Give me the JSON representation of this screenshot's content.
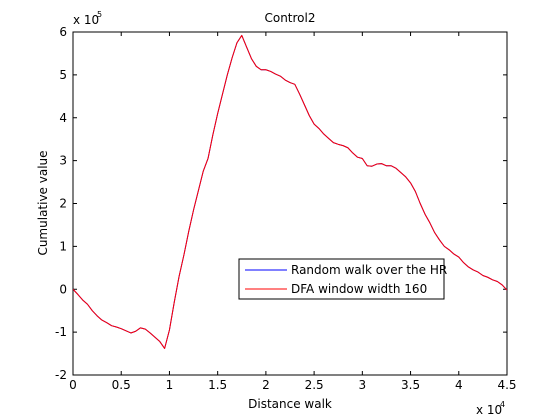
{
  "chart_data": {
    "type": "line",
    "title": "Control2",
    "xlabel": "Distance walk",
    "ylabel": "Cumulative value",
    "x_multiplier": "x 10",
    "x_multiplier_exp": "4",
    "y_multiplier": "x 10",
    "y_multiplier_exp": "5",
    "xlim": [
      0,
      4.5
    ],
    "ylim": [
      -2,
      6
    ],
    "x_ticks": [
      {
        "value": 0,
        "label": "0"
      },
      {
        "value": 0.5,
        "label": "0.5"
      },
      {
        "value": 1,
        "label": "1"
      },
      {
        "value": 1.5,
        "label": "1.5"
      },
      {
        "value": 2,
        "label": "2"
      },
      {
        "value": 2.5,
        "label": "2.5"
      },
      {
        "value": 3,
        "label": "3"
      },
      {
        "value": 3.5,
        "label": "3.5"
      },
      {
        "value": 4,
        "label": "4"
      },
      {
        "value": 4.5,
        "label": "4.5"
      }
    ],
    "y_ticks": [
      {
        "value": -2,
        "label": "-2"
      },
      {
        "value": -1,
        "label": "-1"
      },
      {
        "value": 0,
        "label": "0"
      },
      {
        "value": 1,
        "label": "1"
      },
      {
        "value": 2,
        "label": "2"
      },
      {
        "value": 3,
        "label": "3"
      },
      {
        "value": 4,
        "label": "4"
      },
      {
        "value": 5,
        "label": "5"
      },
      {
        "value": 6,
        "label": "6"
      }
    ],
    "grid": false,
    "legend_position": "lower-right",
    "series": [
      {
        "name": "Random walk over the HR",
        "color": "#0000ff",
        "x": [
          0,
          0.05,
          0.1,
          0.15,
          0.2,
          0.25,
          0.3,
          0.35,
          0.4,
          0.45,
          0.5,
          0.55,
          0.6,
          0.65,
          0.7,
          0.75,
          0.8,
          0.85,
          0.9,
          0.95,
          1.0,
          1.05,
          1.1,
          1.15,
          1.2,
          1.25,
          1.3,
          1.35,
          1.4,
          1.45,
          1.5,
          1.55,
          1.6,
          1.65,
          1.7,
          1.75,
          1.8,
          1.85,
          1.9,
          1.95,
          2.0,
          2.05,
          2.1,
          2.15,
          2.2,
          2.25,
          2.3,
          2.35,
          2.4,
          2.45,
          2.5,
          2.55,
          2.6,
          2.65,
          2.7,
          2.75,
          2.8,
          2.85,
          2.9,
          2.95,
          3.0,
          3.05,
          3.1,
          3.15,
          3.2,
          3.25,
          3.3,
          3.35,
          3.4,
          3.45,
          3.5,
          3.55,
          3.6,
          3.65,
          3.7,
          3.75,
          3.8,
          3.85,
          3.9,
          3.95,
          4.0,
          4.05,
          4.1,
          4.15,
          4.2,
          4.25,
          4.3,
          4.35,
          4.4,
          4.45,
          4.5
        ],
        "y": [
          0,
          -0.12,
          -0.25,
          -0.35,
          -0.5,
          -0.62,
          -0.72,
          -0.78,
          -0.85,
          -0.88,
          -0.92,
          -0.97,
          -1.02,
          -0.98,
          -0.9,
          -0.93,
          -1.02,
          -1.12,
          -1.22,
          -1.38,
          -0.95,
          -0.3,
          0.3,
          0.8,
          1.35,
          1.85,
          2.3,
          2.75,
          3.05,
          3.6,
          4.1,
          4.55,
          5.0,
          5.4,
          5.75,
          5.92,
          5.65,
          5.38,
          5.2,
          5.12,
          5.12,
          5.08,
          5.02,
          4.97,
          4.88,
          4.82,
          4.78,
          4.55,
          4.3,
          4.05,
          3.85,
          3.75,
          3.62,
          3.52,
          3.42,
          3.38,
          3.35,
          3.3,
          3.18,
          3.08,
          3.05,
          2.88,
          2.87,
          2.92,
          2.93,
          2.88,
          2.88,
          2.82,
          2.72,
          2.62,
          2.48,
          2.28,
          2.0,
          1.75,
          1.55,
          1.32,
          1.15,
          1.0,
          0.92,
          0.82,
          0.75,
          0.62,
          0.52,
          0.45,
          0.4,
          0.32,
          0.28,
          0.22,
          0.18,
          0.1,
          -0.02
        ]
      },
      {
        "name": "DFA window width 160",
        "color": "#ff0000",
        "x": [
          0,
          0.05,
          0.1,
          0.15,
          0.2,
          0.25,
          0.3,
          0.35,
          0.4,
          0.45,
          0.5,
          0.55,
          0.6,
          0.65,
          0.7,
          0.75,
          0.8,
          0.85,
          0.9,
          0.95,
          1.0,
          1.05,
          1.1,
          1.15,
          1.2,
          1.25,
          1.3,
          1.35,
          1.4,
          1.45,
          1.5,
          1.55,
          1.6,
          1.65,
          1.7,
          1.75,
          1.8,
          1.85,
          1.9,
          1.95,
          2.0,
          2.05,
          2.1,
          2.15,
          2.2,
          2.25,
          2.3,
          2.35,
          2.4,
          2.45,
          2.5,
          2.55,
          2.6,
          2.65,
          2.7,
          2.75,
          2.8,
          2.85,
          2.9,
          2.95,
          3.0,
          3.05,
          3.1,
          3.15,
          3.2,
          3.25,
          3.3,
          3.35,
          3.4,
          3.45,
          3.5,
          3.55,
          3.6,
          3.65,
          3.7,
          3.75,
          3.8,
          3.85,
          3.9,
          3.95,
          4.0,
          4.05,
          4.1,
          4.15,
          4.2,
          4.25,
          4.3,
          4.35,
          4.4,
          4.45,
          4.5
        ],
        "y": [
          0,
          -0.12,
          -0.25,
          -0.35,
          -0.5,
          -0.62,
          -0.72,
          -0.78,
          -0.85,
          -0.88,
          -0.92,
          -0.97,
          -1.02,
          -0.98,
          -0.9,
          -0.93,
          -1.02,
          -1.12,
          -1.22,
          -1.38,
          -0.95,
          -0.3,
          0.3,
          0.8,
          1.35,
          1.85,
          2.3,
          2.75,
          3.05,
          3.6,
          4.1,
          4.55,
          5.0,
          5.4,
          5.75,
          5.92,
          5.65,
          5.38,
          5.2,
          5.12,
          5.12,
          5.08,
          5.02,
          4.97,
          4.88,
          4.82,
          4.78,
          4.55,
          4.3,
          4.05,
          3.85,
          3.75,
          3.62,
          3.52,
          3.42,
          3.38,
          3.35,
          3.3,
          3.18,
          3.08,
          3.05,
          2.88,
          2.87,
          2.92,
          2.93,
          2.88,
          2.88,
          2.82,
          2.72,
          2.62,
          2.48,
          2.28,
          2.0,
          1.75,
          1.55,
          1.32,
          1.15,
          1.0,
          0.92,
          0.82,
          0.75,
          0.62,
          0.52,
          0.45,
          0.4,
          0.32,
          0.28,
          0.22,
          0.18,
          0.1,
          -0.02
        ]
      }
    ]
  }
}
